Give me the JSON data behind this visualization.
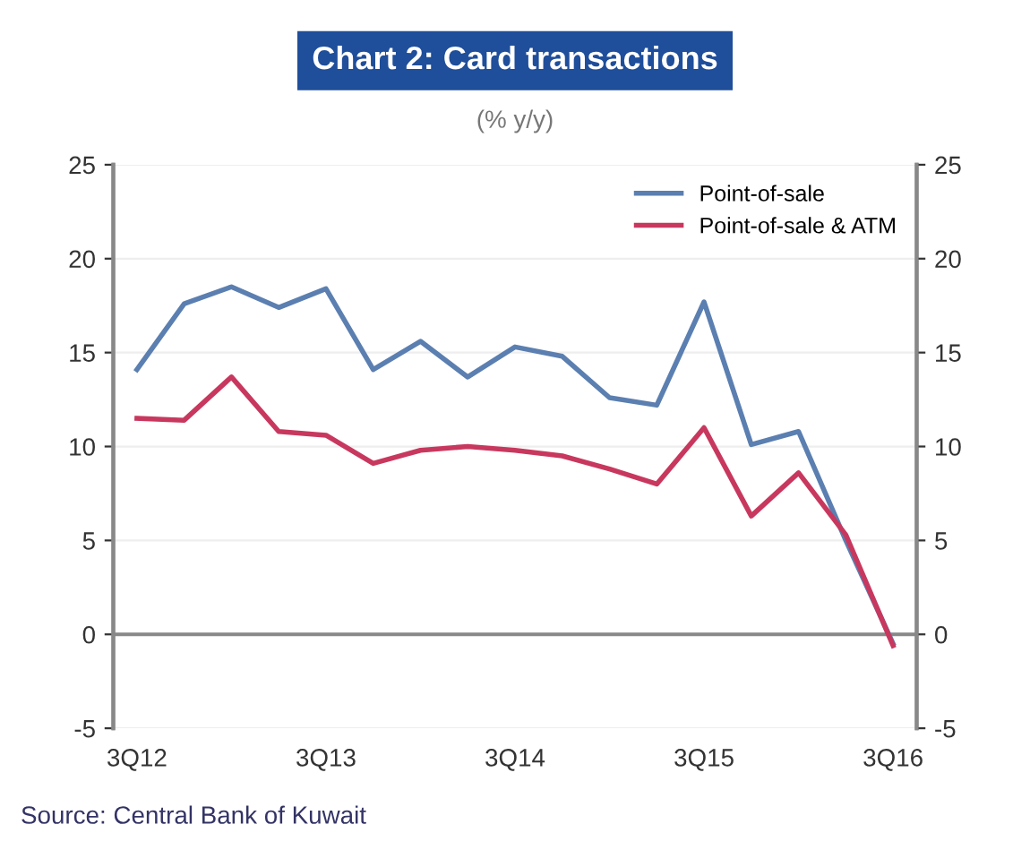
{
  "chart_data": {
    "type": "line",
    "title": "Chart 2: Card transactions",
    "subtitle": "(% y/y)",
    "categories": [
      "3Q12",
      null,
      null,
      null,
      "3Q13",
      null,
      null,
      null,
      "3Q14",
      null,
      null,
      null,
      "3Q15",
      null,
      null,
      null,
      "3Q16"
    ],
    "series": [
      {
        "name": "Point-of-sale",
        "color": "#5b7fb0",
        "values": [
          14.1,
          17.6,
          18.5,
          17.4,
          18.4,
          14.1,
          15.6,
          13.7,
          15.3,
          14.8,
          12.6,
          12.2,
          17.7,
          10.1,
          10.8,
          5.0,
          -0.5
        ]
      },
      {
        "name": "Point-of-sale & ATM",
        "color": "#c8385e",
        "values": [
          11.5,
          11.4,
          13.7,
          10.8,
          10.6,
          9.1,
          9.8,
          10.0,
          9.8,
          9.5,
          8.8,
          8.0,
          11.0,
          6.3,
          8.6,
          5.3,
          -0.6
        ]
      }
    ],
    "ylim": [
      -5,
      25
    ],
    "yticks": [
      -5,
      0,
      5,
      10,
      15,
      20,
      25
    ],
    "y2lim": [
      -5,
      25
    ],
    "y2ticks": [
      -5,
      0,
      5,
      10,
      15,
      20,
      25
    ],
    "grid": "y",
    "legend": "top right",
    "marker": "none",
    "line_style": "solid",
    "annotations": [
      "Source: Central Bank of Kuwait"
    ]
  }
}
